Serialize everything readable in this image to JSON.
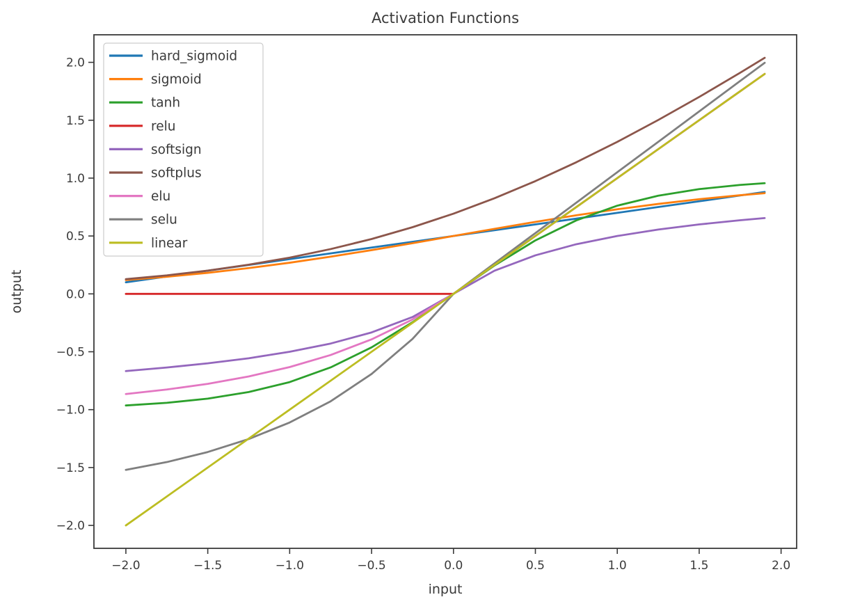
{
  "colors": {
    "background": "#ffffff",
    "axis": "#3a3a3a",
    "text": "#3a3a3a",
    "legend_border": "#cccccc",
    "legend_background": "#ffffff"
  },
  "chart_data": {
    "type": "line",
    "title": "Activation Functions",
    "xlabel": "input",
    "ylabel": "output",
    "xlim": [
      -2.195,
      2.095
    ],
    "ylim": [
      -2.198,
      2.238
    ],
    "grid": false,
    "legend_position": "upper left",
    "x_ticks": {
      "values": [
        -2.0,
        -1.5,
        -1.0,
        -0.5,
        0.0,
        0.5,
        1.0,
        1.5,
        2.0
      ],
      "labels": [
        "−2.0",
        "−1.5",
        "−1.0",
        "−0.5",
        "0.0",
        "0.5",
        "1.0",
        "1.5",
        "2.0"
      ]
    },
    "y_ticks": {
      "values": [
        -2.0,
        -1.5,
        -1.0,
        -0.5,
        0.0,
        0.5,
        1.0,
        1.5,
        2.0
      ],
      "labels": [
        "−2.0",
        "−1.5",
        "−1.0",
        "−0.5",
        "0.0",
        "0.5",
        "1.0",
        "1.5",
        "2.0"
      ]
    },
    "x": [
      -2.0,
      -1.75,
      -1.5,
      -1.25,
      -1.0,
      -0.75,
      -0.5,
      -0.25,
      0.0,
      0.25,
      0.5,
      0.75,
      1.0,
      1.25,
      1.5,
      1.75,
      1.9
    ],
    "series": [
      {
        "name": "hard_sigmoid",
        "color": "#1f77b4",
        "values": [
          0.1,
          0.15,
          0.2,
          0.25,
          0.3,
          0.35,
          0.4,
          0.45,
          0.5,
          0.55,
          0.6,
          0.65,
          0.7,
          0.75,
          0.8,
          0.85,
          0.88
        ]
      },
      {
        "name": "sigmoid",
        "color": "#ff7f0e",
        "values": [
          0.119,
          0.148,
          0.182,
          0.223,
          0.269,
          0.321,
          0.378,
          0.438,
          0.5,
          0.562,
          0.622,
          0.679,
          0.731,
          0.777,
          0.818,
          0.852,
          0.87
        ]
      },
      {
        "name": "tanh",
        "color": "#2ca02c",
        "values": [
          -0.964,
          -0.941,
          -0.905,
          -0.848,
          -0.762,
          -0.635,
          -0.462,
          -0.245,
          0.0,
          0.245,
          0.462,
          0.635,
          0.762,
          0.848,
          0.905,
          0.941,
          0.956
        ]
      },
      {
        "name": "relu",
        "color": "#d62728",
        "values": [
          0.0,
          0.0,
          0.0,
          0.0,
          0.0,
          0.0,
          0.0,
          0.0,
          0.0,
          0.25,
          0.5,
          0.75,
          1.0,
          1.25,
          1.5,
          1.75,
          1.9
        ]
      },
      {
        "name": "softsign",
        "color": "#9467bd",
        "values": [
          -0.667,
          -0.636,
          -0.6,
          -0.556,
          -0.5,
          -0.429,
          -0.333,
          -0.2,
          0.0,
          0.2,
          0.333,
          0.429,
          0.5,
          0.556,
          0.6,
          0.636,
          0.655
        ]
      },
      {
        "name": "softplus",
        "color": "#8c564b",
        "values": [
          0.127,
          0.16,
          0.201,
          0.252,
          0.313,
          0.387,
          0.474,
          0.576,
          0.693,
          0.826,
          0.974,
          1.137,
          1.313,
          1.502,
          1.701,
          1.91,
          2.039
        ]
      },
      {
        "name": "elu",
        "color": "#e377c2",
        "values": [
          -0.865,
          -0.826,
          -0.777,
          -0.713,
          -0.632,
          -0.528,
          -0.393,
          -0.221,
          0.0,
          0.25,
          0.5,
          0.75,
          1.0,
          1.25,
          1.5,
          1.75,
          1.9
        ]
      },
      {
        "name": "selu",
        "color": "#7f7f7f",
        "values": [
          -1.52,
          -1.453,
          -1.366,
          -1.254,
          -1.111,
          -0.928,
          -0.692,
          -0.389,
          0.0,
          0.263,
          0.525,
          0.788,
          1.051,
          1.313,
          1.576,
          1.839,
          1.996
        ]
      },
      {
        "name": "linear",
        "color": "#bcbd22",
        "values": [
          -2.0,
          -1.75,
          -1.5,
          -1.25,
          -1.0,
          -0.75,
          -0.5,
          -0.25,
          0.0,
          0.25,
          0.5,
          0.75,
          1.0,
          1.25,
          1.5,
          1.75,
          1.9
        ]
      }
    ]
  }
}
